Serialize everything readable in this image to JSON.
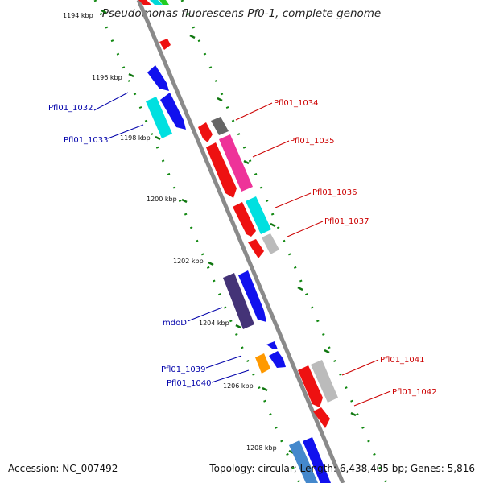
{
  "title": "Pseudomonas fluorescens Pf0-1, complete genome",
  "accession": "Accession: NC_007492",
  "topology": "Topology: circular; Length: 6,438,405 bp; Genes: 5,816",
  "ticks": [
    "1194 kbp",
    "1196 kbp",
    "1198 kbp",
    "1200 kbp",
    "1202 kbp",
    "1204 kbp",
    "1206 kbp",
    "1208 kbp"
  ],
  "labels": {
    "left": [
      "Pfl01_1032",
      "Pfl01_1033",
      "mdoD",
      "Pfl01_1039",
      "Pfl01_1040"
    ],
    "right": [
      "Pfl01_1034",
      "Pfl01_1035",
      "Pfl01_1036",
      "Pfl01_1037",
      "Pfl01_1041",
      "Pfl01_1042"
    ]
  },
  "colors": {
    "forward_label": "#0000aa",
    "reverse_label": "#cc0000",
    "dots": "#118811",
    "backbone": "#8a8a8a"
  }
}
